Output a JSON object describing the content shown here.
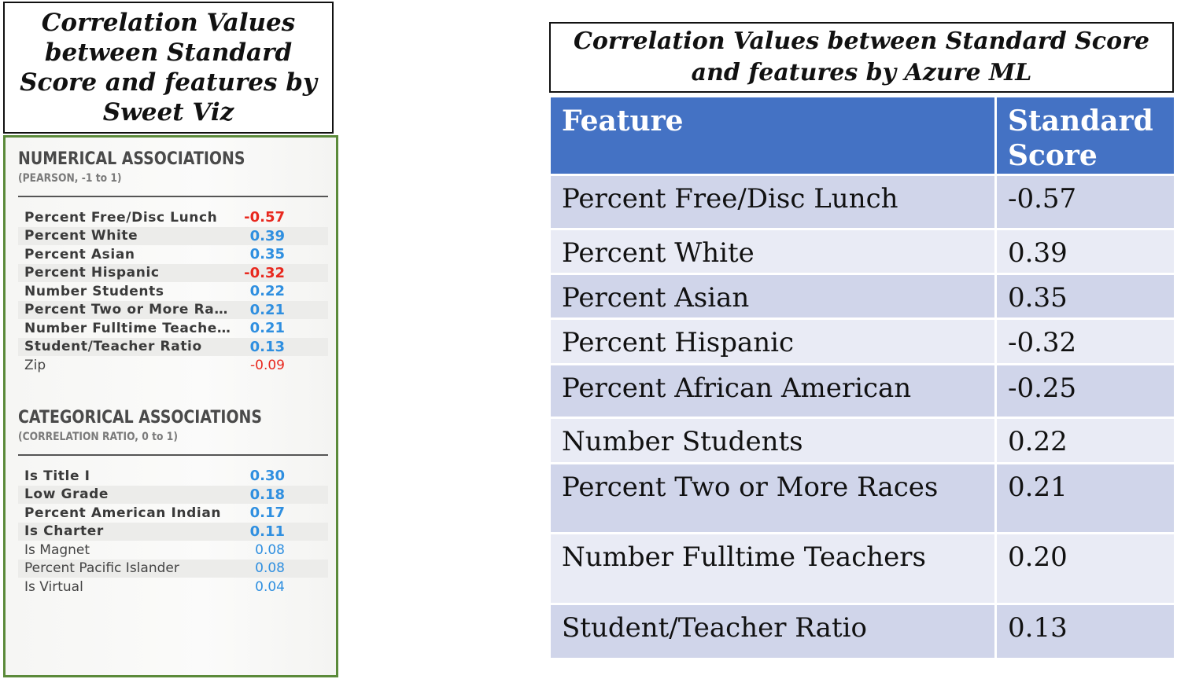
{
  "left": {
    "title": "Correlation Values between Standard Score and  features by Sweet Viz",
    "numerical": {
      "heading": "NUMERICAL ASSOCIATIONS",
      "subheading": "(PEARSON, -1 to 1)",
      "rows": [
        {
          "name": "Percent Free/Disc Lunch",
          "value": "-0.57",
          "color": "#e8281e",
          "bold": true
        },
        {
          "name": "Percent White",
          "value": "0.39",
          "color": "#2f8fe0",
          "bold": true
        },
        {
          "name": "Percent Asian",
          "value": "0.35",
          "color": "#2f8fe0",
          "bold": true
        },
        {
          "name": "Percent Hispanic",
          "value": "-0.32",
          "color": "#e8281e",
          "bold": true
        },
        {
          "name": "Number Students",
          "value": "0.22",
          "color": "#2f8fe0",
          "bold": true
        },
        {
          "name": "Percent Two or More Ra…",
          "value": "0.21",
          "color": "#2f8fe0",
          "bold": true
        },
        {
          "name": "Number Fulltime Teache…",
          "value": "0.21",
          "color": "#2f8fe0",
          "bold": true
        },
        {
          "name": "Student/Teacher Ratio",
          "value": "0.13",
          "color": "#2f8fe0",
          "bold": true
        },
        {
          "name": "Zip",
          "value": "-0.09",
          "color": "#e8281e",
          "bold": false
        }
      ]
    },
    "categorical": {
      "heading": "CATEGORICAL ASSOCIATIONS",
      "subheading": "(CORRELATION RATIO, 0 to 1)",
      "rows": [
        {
          "name": "Is Title I",
          "value": "0.30",
          "color": "#2f8fe0",
          "bold": true
        },
        {
          "name": "Low Grade",
          "value": "0.18",
          "color": "#2f8fe0",
          "bold": true
        },
        {
          "name": "Percent American Indian",
          "value": "0.17",
          "color": "#2f8fe0",
          "bold": true
        },
        {
          "name": "Is Charter",
          "value": "0.11",
          "color": "#2f8fe0",
          "bold": true
        },
        {
          "name": "Is Magnet",
          "value": "0.08",
          "color": "#2f8fe0",
          "bold": false
        },
        {
          "name": "Percent Pacific Islander",
          "value": "0.08",
          "color": "#2f8fe0",
          "bold": false
        },
        {
          "name": "Is Virtual",
          "value": "0.04",
          "color": "#2f8fe0",
          "bold": false
        }
      ]
    }
  },
  "right": {
    "title_line1": "Correlation Values between Standard Score",
    "title_line2": "and features by Azure ML",
    "header": {
      "feature": "Feature",
      "score_line1": "Standard",
      "score_line2": "Score"
    },
    "rows": [
      {
        "feature": "Percent Free/Disc Lunch",
        "score": "-0.57"
      },
      {
        "feature": "Percent White",
        "score": "0.39"
      },
      {
        "feature": "Percent Asian",
        "score": "0.35"
      },
      {
        "feature": "Percent Hispanic",
        "score": "-0.32"
      },
      {
        "feature": "Percent African American",
        "score": "-0.25"
      },
      {
        "feature": "Number Students",
        "score": "0.22"
      },
      {
        "feature": "Percent Two or More Races",
        "score": "0.21"
      },
      {
        "feature": "Number Fulltime Teachers",
        "score": "0.20"
      },
      {
        "feature": "Student/Teacher Ratio",
        "score": "0.13"
      }
    ]
  }
}
